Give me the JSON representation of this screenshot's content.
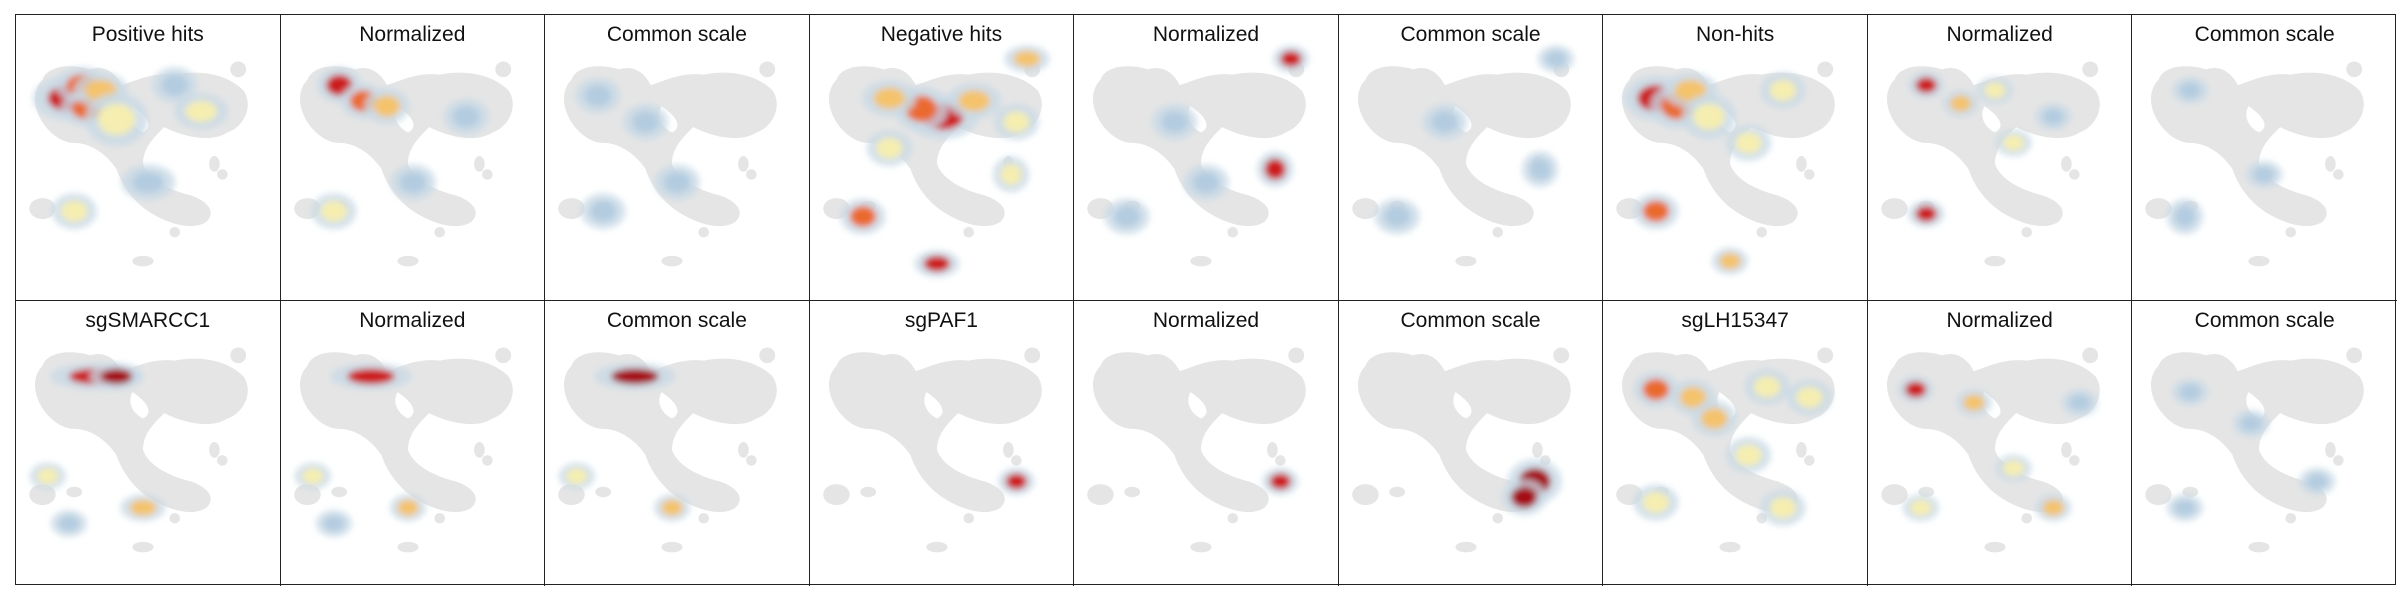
{
  "background_color": "#e5e5e5",
  "heat_colors": [
    "#c8d9e6",
    "#b4cce0",
    "#f5eeb0",
    "#f4c36c",
    "#ea6b2d",
    "#cc1b1b",
    "#a40f14"
  ],
  "panels": [
    {
      "title": "Positive hits",
      "hotspots": [
        [
          0.2,
          0.23,
          0.08,
          0.05,
          "#cc1b1b"
        ],
        [
          0.25,
          0.18,
          0.06,
          0.04,
          "#ea6b2d"
        ],
        [
          0.27,
          0.27,
          0.06,
          0.04,
          "#ea6b2d"
        ],
        [
          0.32,
          0.2,
          0.06,
          0.04,
          "#f4c36c"
        ],
        [
          0.38,
          0.31,
          0.07,
          0.06,
          "#f5eeb0"
        ],
        [
          0.22,
          0.66,
          0.05,
          0.04,
          "#f5eeb0"
        ],
        [
          0.5,
          0.55,
          0.06,
          0.04,
          "#b4cce0"
        ],
        [
          0.7,
          0.28,
          0.06,
          0.04,
          "#f5eeb0"
        ],
        [
          0.6,
          0.18,
          0.05,
          0.04,
          "#b4cce0"
        ]
      ]
    },
    {
      "title": "Normalized",
      "hotspots": [
        [
          0.22,
          0.18,
          0.05,
          0.04,
          "#cc1b1b"
        ],
        [
          0.31,
          0.24,
          0.05,
          0.04,
          "#ea6b2d"
        ],
        [
          0.4,
          0.26,
          0.05,
          0.04,
          "#f4c36c"
        ],
        [
          0.2,
          0.66,
          0.05,
          0.04,
          "#f5eeb0"
        ],
        [
          0.7,
          0.3,
          0.05,
          0.04,
          "#b4cce0"
        ],
        [
          0.5,
          0.55,
          0.05,
          0.04,
          "#b4cce0"
        ]
      ]
    },
    {
      "title": "Common scale",
      "hotspots": [
        [
          0.2,
          0.22,
          0.05,
          0.04,
          "#b4cce0"
        ],
        [
          0.38,
          0.32,
          0.05,
          0.04,
          "#b4cce0"
        ],
        [
          0.22,
          0.66,
          0.05,
          0.04,
          "#b4cce0"
        ],
        [
          0.5,
          0.55,
          0.05,
          0.04,
          "#b4cce0"
        ]
      ]
    },
    {
      "title": "Negative hits",
      "hotspots": [
        [
          0.5,
          0.3,
          0.08,
          0.05,
          "#cc1b1b"
        ],
        [
          0.42,
          0.27,
          0.06,
          0.05,
          "#ea6b2d"
        ],
        [
          0.3,
          0.23,
          0.06,
          0.04,
          "#f4c36c"
        ],
        [
          0.62,
          0.24,
          0.06,
          0.04,
          "#f4c36c"
        ],
        [
          0.78,
          0.32,
          0.05,
          0.04,
          "#f5eeb0"
        ],
        [
          0.82,
          0.08,
          0.05,
          0.03,
          "#f4c36c"
        ],
        [
          0.76,
          0.52,
          0.04,
          0.04,
          "#f5eeb0"
        ],
        [
          0.2,
          0.68,
          0.05,
          0.04,
          "#ea6b2d"
        ],
        [
          0.48,
          0.86,
          0.05,
          0.03,
          "#cc1b1b"
        ],
        [
          0.3,
          0.42,
          0.05,
          0.04,
          "#f5eeb0"
        ]
      ]
    },
    {
      "title": "Normalized",
      "hotspots": [
        [
          0.82,
          0.08,
          0.04,
          0.03,
          "#cc1b1b"
        ],
        [
          0.76,
          0.5,
          0.04,
          0.04,
          "#cc1b1b"
        ],
        [
          0.2,
          0.68,
          0.05,
          0.04,
          "#b4cce0"
        ],
        [
          0.5,
          0.55,
          0.05,
          0.04,
          "#b4cce0"
        ],
        [
          0.38,
          0.32,
          0.05,
          0.04,
          "#b4cce0"
        ]
      ]
    },
    {
      "title": "Common scale",
      "hotspots": [
        [
          0.82,
          0.08,
          0.04,
          0.03,
          "#b4cce0"
        ],
        [
          0.76,
          0.5,
          0.04,
          0.04,
          "#b4cce0"
        ],
        [
          0.22,
          0.68,
          0.05,
          0.04,
          "#b4cce0"
        ],
        [
          0.4,
          0.32,
          0.05,
          0.04,
          "#b4cce0"
        ]
      ]
    },
    {
      "title": "Non-hits",
      "hotspots": [
        [
          0.2,
          0.23,
          0.07,
          0.05,
          "#cc1b1b"
        ],
        [
          0.28,
          0.26,
          0.06,
          0.05,
          "#ea6b2d"
        ],
        [
          0.33,
          0.2,
          0.06,
          0.04,
          "#f4c36c"
        ],
        [
          0.4,
          0.3,
          0.06,
          0.05,
          "#f5eeb0"
        ],
        [
          0.55,
          0.4,
          0.05,
          0.04,
          "#f5eeb0"
        ],
        [
          0.2,
          0.66,
          0.05,
          0.04,
          "#ea6b2d"
        ],
        [
          0.48,
          0.85,
          0.04,
          0.03,
          "#f4c36c"
        ],
        [
          0.68,
          0.2,
          0.05,
          0.04,
          "#f5eeb0"
        ]
      ]
    },
    {
      "title": "Normalized",
      "hotspots": [
        [
          0.22,
          0.18,
          0.04,
          0.03,
          "#cc1b1b"
        ],
        [
          0.22,
          0.67,
          0.04,
          0.03,
          "#cc1b1b"
        ],
        [
          0.35,
          0.25,
          0.04,
          0.03,
          "#f4c36c"
        ],
        [
          0.55,
          0.4,
          0.04,
          0.03,
          "#f5eeb0"
        ],
        [
          0.7,
          0.3,
          0.04,
          0.03,
          "#b4cce0"
        ],
        [
          0.48,
          0.2,
          0.04,
          0.03,
          "#f5eeb0"
        ]
      ]
    },
    {
      "title": "Common scale",
      "hotspots": [
        [
          0.22,
          0.2,
          0.04,
          0.03,
          "#b4cce0"
        ],
        [
          0.2,
          0.68,
          0.04,
          0.04,
          "#b4cce0"
        ],
        [
          0.5,
          0.52,
          0.04,
          0.03,
          "#b4cce0"
        ]
      ]
    },
    {
      "title": "sgSMARCC1",
      "hotspots": [
        [
          0.3,
          0.2,
          0.1,
          0.03,
          "#cc1b1b"
        ],
        [
          0.38,
          0.2,
          0.06,
          0.03,
          "#a40f14"
        ],
        [
          0.48,
          0.7,
          0.05,
          0.03,
          "#f4c36c"
        ],
        [
          0.12,
          0.58,
          0.04,
          0.03,
          "#f5eeb0"
        ],
        [
          0.2,
          0.76,
          0.04,
          0.03,
          "#b4cce0"
        ]
      ]
    },
    {
      "title": "Normalized",
      "hotspots": [
        [
          0.34,
          0.2,
          0.09,
          0.03,
          "#cc1b1b"
        ],
        [
          0.48,
          0.7,
          0.04,
          0.03,
          "#f4c36c"
        ],
        [
          0.12,
          0.58,
          0.04,
          0.03,
          "#f5eeb0"
        ],
        [
          0.2,
          0.76,
          0.04,
          0.03,
          "#b4cce0"
        ]
      ]
    },
    {
      "title": "Common scale",
      "hotspots": [
        [
          0.34,
          0.2,
          0.09,
          0.03,
          "#a40f14"
        ],
        [
          0.48,
          0.7,
          0.04,
          0.03,
          "#f4c36c"
        ],
        [
          0.12,
          0.58,
          0.04,
          0.03,
          "#f5eeb0"
        ]
      ]
    },
    {
      "title": "sgPAF1",
      "hotspots": [
        [
          0.78,
          0.6,
          0.04,
          0.03,
          "#cc1b1b"
        ]
      ]
    },
    {
      "title": "Normalized",
      "hotspots": [
        [
          0.78,
          0.6,
          0.04,
          0.03,
          "#cc1b1b"
        ]
      ]
    },
    {
      "title": "Common scale",
      "hotspots": [
        [
          0.74,
          0.6,
          0.06,
          0.05,
          "#a40f14"
        ],
        [
          0.7,
          0.66,
          0.05,
          0.04,
          "#a40f14"
        ]
      ]
    },
    {
      "title": "sgLH15347",
      "hotspots": [
        [
          0.2,
          0.25,
          0.05,
          0.04,
          "#ea6b2d"
        ],
        [
          0.34,
          0.28,
          0.05,
          0.04,
          "#f4c36c"
        ],
        [
          0.42,
          0.36,
          0.05,
          0.04,
          "#f4c36c"
        ],
        [
          0.62,
          0.24,
          0.05,
          0.04,
          "#f5eeb0"
        ],
        [
          0.78,
          0.28,
          0.05,
          0.04,
          "#f5eeb0"
        ],
        [
          0.55,
          0.5,
          0.05,
          0.04,
          "#f5eeb0"
        ],
        [
          0.2,
          0.68,
          0.05,
          0.04,
          "#f5eeb0"
        ],
        [
          0.68,
          0.7,
          0.05,
          0.04,
          "#f5eeb0"
        ]
      ]
    },
    {
      "title": "Normalized",
      "hotspots": [
        [
          0.18,
          0.25,
          0.04,
          0.03,
          "#cc1b1b"
        ],
        [
          0.4,
          0.3,
          0.04,
          0.03,
          "#f4c36c"
        ],
        [
          0.55,
          0.55,
          0.04,
          0.03,
          "#f5eeb0"
        ],
        [
          0.2,
          0.7,
          0.04,
          0.03,
          "#f5eeb0"
        ],
        [
          0.7,
          0.7,
          0.04,
          0.03,
          "#f4c36c"
        ],
        [
          0.8,
          0.3,
          0.04,
          0.03,
          "#b4cce0"
        ]
      ]
    },
    {
      "title": "Common scale",
      "hotspots": [
        [
          0.22,
          0.26,
          0.04,
          0.03,
          "#b4cce0"
        ],
        [
          0.45,
          0.38,
          0.04,
          0.03,
          "#b4cce0"
        ],
        [
          0.2,
          0.7,
          0.04,
          0.03,
          "#b4cce0"
        ],
        [
          0.7,
          0.6,
          0.04,
          0.03,
          "#b4cce0"
        ]
      ]
    }
  ]
}
